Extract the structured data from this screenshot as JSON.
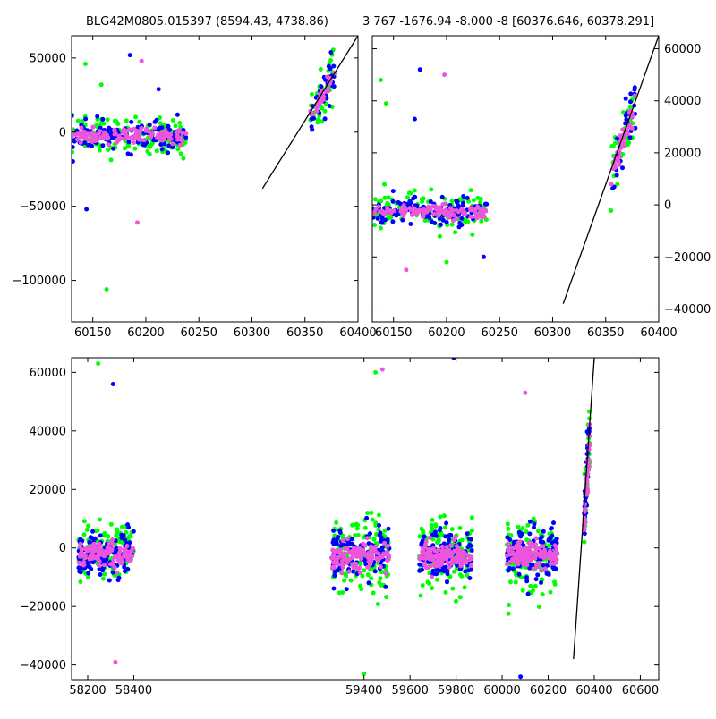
{
  "titles": {
    "left": "BLG42M0805.015397 (8594.43, 4738.86)",
    "right": "3 767 -1676.94 -8.000 -8 [60376.646, 60378.291]"
  },
  "colors": {
    "series_blue": "#0000ff",
    "series_green": "#00ff00",
    "series_magenta": "#ee55dd",
    "fit_line": "#000000"
  },
  "chart_data": [
    {
      "id": "top-left",
      "type": "scatter",
      "xlim": [
        60130,
        60400
      ],
      "ylim": [
        -128000,
        65000
      ],
      "xticks": [
        60150,
        60200,
        60250,
        60300,
        60350,
        60400
      ],
      "xtick_labels": [
        "60150",
        "60200",
        "60250",
        "60300",
        "60350",
        "60400"
      ],
      "yticks": [
        50000,
        0,
        -50000,
        -100000
      ],
      "ytick_labels": [
        "50000",
        "0",
        "−50000",
        "−100000"
      ],
      "ytick_side": "left",
      "clusters": [
        {
          "x_range": [
            60130,
            60238
          ],
          "y_center": -2500,
          "spread": 9000
        },
        {
          "x_range": [
            60355,
            60378
          ],
          "y_center": 25000,
          "spread": 12000,
          "trend": true
        }
      ],
      "outliers": [
        {
          "x": 60143,
          "y": 46000
        },
        {
          "x": 60185,
          "y": 52000
        },
        {
          "x": 60196,
          "y": 48000
        },
        {
          "x": 60163,
          "y": -106000
        },
        {
          "x": 60144,
          "y": -52000
        },
        {
          "x": 60192,
          "y": -61000
        },
        {
          "x": 60158,
          "y": 32000
        },
        {
          "x": 60212,
          "y": 29000
        }
      ],
      "fit_line": [
        [
          60310,
          -38000
        ],
        [
          60400,
          65000
        ]
      ]
    },
    {
      "id": "top-right",
      "type": "scatter",
      "xlim": [
        60130,
        60400
      ],
      "ylim": [
        -45000,
        65000
      ],
      "xticks": [
        60150,
        60200,
        60250,
        60300,
        60350,
        60400
      ],
      "xtick_labels": [
        "60150",
        "60200",
        "60250",
        "60300",
        "60350",
        "60400"
      ],
      "yticks": [
        60000,
        40000,
        20000,
        0,
        -20000,
        -40000
      ],
      "ytick_labels": [
        "60000",
        "40000",
        "20000",
        "0",
        "−20000",
        "−40000"
      ],
      "ytick_side": "right",
      "clusters": [
        {
          "x_range": [
            60130,
            60238
          ],
          "y_center": -2500,
          "spread": 4500
        },
        {
          "x_range": [
            60355,
            60378
          ],
          "y_center": 25000,
          "spread": 9000,
          "trend": true
        }
      ],
      "outliers": [
        {
          "x": 60138,
          "y": 48000
        },
        {
          "x": 60175,
          "y": 52000
        },
        {
          "x": 60198,
          "y": 50000
        },
        {
          "x": 60143,
          "y": 39000
        },
        {
          "x": 60170,
          "y": 33000
        },
        {
          "x": 60162,
          "y": -25000
        },
        {
          "x": 60200,
          "y": -22000
        },
        {
          "x": 60235,
          "y": -20000
        }
      ],
      "fit_line": [
        [
          60310,
          -38000
        ],
        [
          60400,
          65000
        ]
      ]
    },
    {
      "id": "bottom",
      "type": "scatter",
      "xlim": [
        58130,
        60680
      ],
      "ylim": [
        -45000,
        65000
      ],
      "xticks": [
        58200,
        58400,
        59400,
        59600,
        59800,
        60000,
        60200,
        60400,
        60600
      ],
      "xtick_labels": [
        "58200",
        "58400",
        "59400",
        "59600",
        "59800",
        "60000",
        "60200",
        "60400",
        "60600"
      ],
      "yticks": [
        60000,
        40000,
        20000,
        0,
        -20000,
        -40000
      ],
      "ytick_labels": [
        "60000",
        "40000",
        "20000",
        "0",
        "−20000",
        "−40000"
      ],
      "ytick_side": "left",
      "clusters": [
        {
          "x_range": [
            58160,
            58400
          ],
          "y_center": -2000,
          "spread": 7000
        },
        {
          "x_range": [
            59260,
            59510
          ],
          "y_center": -2500,
          "spread": 8500
        },
        {
          "x_range": [
            59640,
            59870
          ],
          "y_center": -2500,
          "spread": 8000
        },
        {
          "x_range": [
            60020,
            60240
          ],
          "y_center": -2500,
          "spread": 8000
        },
        {
          "x_range": [
            60355,
            60380
          ],
          "y_center": 22000,
          "spread": 9000,
          "trend": true
        }
      ],
      "outliers": [
        {
          "x": 58245,
          "y": 63000
        },
        {
          "x": 58310,
          "y": 56000
        },
        {
          "x": 59480,
          "y": 61000
        },
        {
          "x": 59450,
          "y": 60000
        },
        {
          "x": 59790,
          "y": 65000
        },
        {
          "x": 60100,
          "y": 53000
        },
        {
          "x": 59400,
          "y": -43000
        },
        {
          "x": 60080,
          "y": -44000
        },
        {
          "x": 58320,
          "y": -39000
        }
      ],
      "fit_line": [
        [
          60310,
          -38000
        ],
        [
          60400,
          65000
        ]
      ]
    }
  ]
}
